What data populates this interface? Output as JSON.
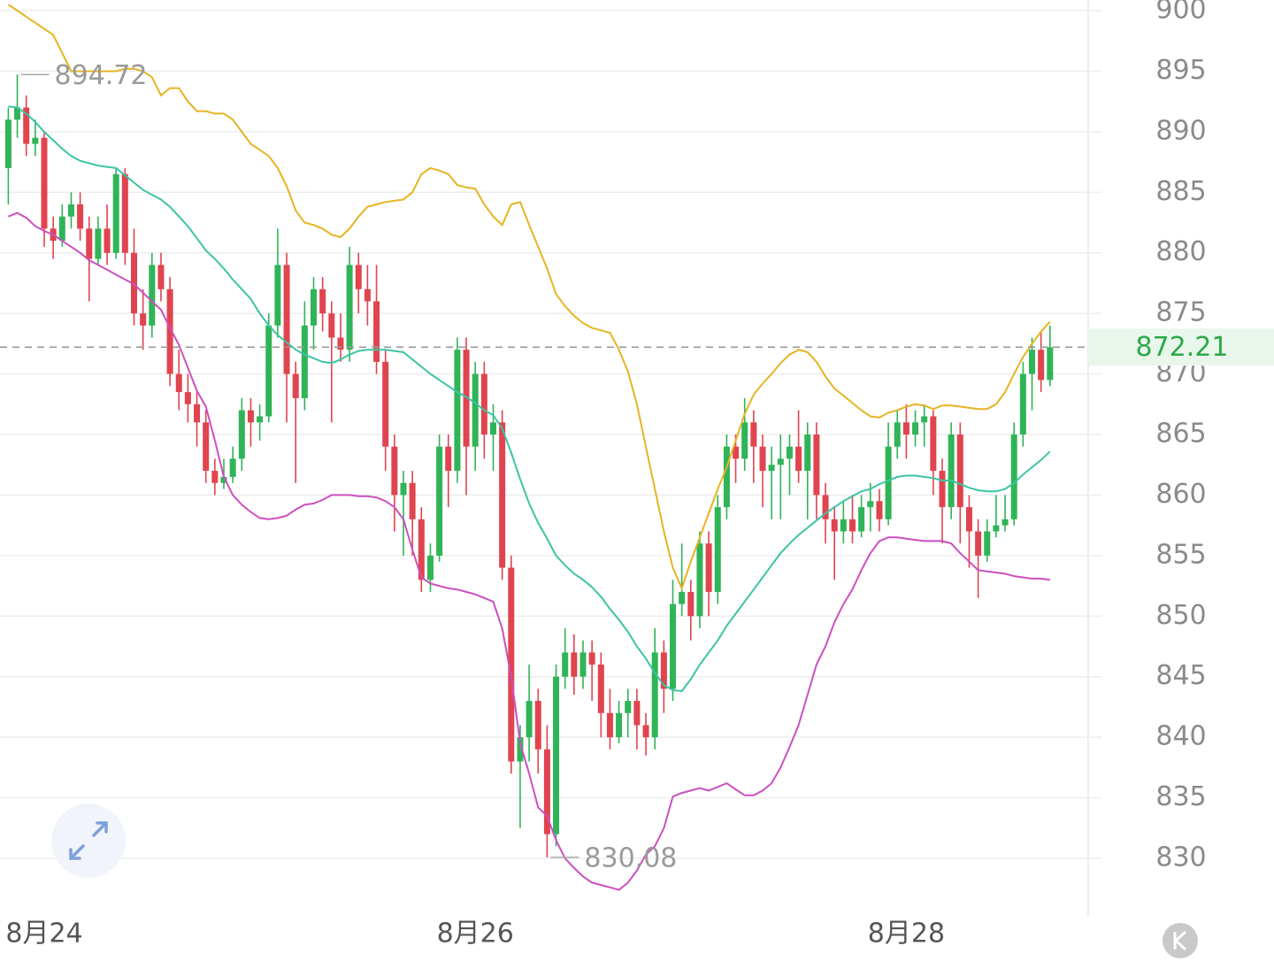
{
  "chart_data": {
    "type": "candlestick",
    "categories": [
      null,
      null,
      null,
      null,
      "8月24",
      null,
      null,
      null,
      null,
      null,
      null,
      null,
      null,
      null,
      null,
      null,
      null,
      null,
      null,
      null,
      null,
      null,
      null,
      null,
      null,
      null,
      null,
      null,
      null,
      null,
      null,
      null,
      null,
      null,
      null,
      null,
      null,
      null,
      null,
      null,
      null,
      null,
      null,
      null,
      null,
      null,
      null,
      null,
      null,
      null,
      null,
      null,
      "8月26",
      null,
      null,
      null,
      null,
      null,
      null,
      null,
      null,
      null,
      null,
      null,
      null,
      null,
      null,
      null,
      null,
      null,
      null,
      null,
      null,
      null,
      null,
      null,
      null,
      null,
      null,
      null,
      null,
      null,
      null,
      null,
      null,
      null,
      null,
      null,
      null,
      null,
      null,
      null,
      null,
      null,
      null,
      null,
      null,
      null,
      null,
      null,
      "8月28",
      null,
      null,
      null,
      null,
      null,
      null,
      null,
      null,
      null,
      null,
      null,
      null,
      null,
      null,
      null,
      null
    ],
    "ohlc": [
      [
        887,
        892,
        884,
        891
      ],
      [
        891,
        894.72,
        889.5,
        892
      ],
      [
        892,
        893,
        888,
        889
      ],
      [
        889,
        891,
        888,
        889.5
      ],
      [
        889.5,
        890,
        880.5,
        882
      ],
      [
        882,
        883,
        879.5,
        881
      ],
      [
        881,
        884,
        880.5,
        883
      ],
      [
        883,
        885,
        882,
        884
      ],
      [
        884,
        885,
        881,
        882
      ],
      [
        882,
        883,
        876,
        879.5
      ],
      [
        879.5,
        883,
        879,
        882
      ],
      [
        882,
        884,
        879,
        880
      ],
      [
        880,
        887,
        879.5,
        886.5
      ],
      [
        886.5,
        887,
        879,
        880
      ],
      [
        880,
        882,
        874,
        875
      ],
      [
        875,
        877,
        872,
        874
      ],
      [
        874,
        880,
        873,
        879
      ],
      [
        879,
        880,
        876,
        877
      ],
      [
        877,
        878,
        869,
        870
      ],
      [
        870,
        872,
        867,
        868.5
      ],
      [
        868.5,
        870,
        866,
        867.5
      ],
      [
        867.5,
        868.5,
        864,
        866
      ],
      [
        866,
        867,
        861,
        862
      ],
      [
        862,
        863,
        860,
        861
      ],
      [
        861,
        863,
        860.5,
        861.5
      ],
      [
        861.5,
        864,
        861,
        863
      ],
      [
        863,
        868,
        862,
        867
      ],
      [
        867,
        868,
        864,
        866
      ],
      [
        866,
        867.5,
        864.5,
        866.5
      ],
      [
        866.5,
        875,
        866,
        874
      ],
      [
        874,
        882,
        873,
        879
      ],
      [
        879,
        880,
        866,
        870
      ],
      [
        870,
        871,
        861,
        868
      ],
      [
        868,
        876,
        867,
        874
      ],
      [
        874,
        878,
        872,
        877
      ],
      [
        877,
        878,
        873.5,
        875
      ],
      [
        875,
        876,
        866,
        873
      ],
      [
        873,
        875,
        871,
        872
      ],
      [
        872,
        880.5,
        871,
        879
      ],
      [
        879,
        880,
        875,
        877
      ],
      [
        877,
        879,
        874,
        876
      ],
      [
        876,
        879,
        870,
        871
      ],
      [
        871,
        872,
        862,
        864
      ],
      [
        864,
        865,
        857,
        860
      ],
      [
        860,
        862,
        855,
        861
      ],
      [
        861,
        862,
        855,
        858
      ],
      [
        858,
        859,
        852,
        853
      ],
      [
        853,
        856,
        852,
        855
      ],
      [
        855,
        865,
        854.5,
        864
      ],
      [
        864,
        865,
        859,
        862
      ],
      [
        862,
        873,
        861,
        872
      ],
      [
        872,
        873,
        860,
        864
      ],
      [
        864,
        871,
        862,
        870
      ],
      [
        870,
        871,
        863,
        865
      ],
      [
        865,
        867.5,
        862,
        866
      ],
      [
        866,
        867,
        853,
        854
      ],
      [
        854,
        855,
        837,
        838
      ],
      [
        838,
        841,
        832.5,
        840
      ],
      [
        840,
        846,
        838,
        843
      ],
      [
        843,
        844,
        837,
        839
      ],
      [
        839,
        841,
        830.08,
        832
      ],
      [
        832,
        846,
        831,
        845
      ],
      [
        845,
        849,
        844,
        847
      ],
      [
        847,
        848.5,
        843.5,
        845
      ],
      [
        845,
        848,
        844,
        847
      ],
      [
        847,
        848,
        843,
        846
      ],
      [
        846,
        847,
        840,
        842
      ],
      [
        842,
        844,
        839,
        840
      ],
      [
        840,
        843,
        839.5,
        842
      ],
      [
        842,
        844,
        840,
        843
      ],
      [
        843,
        844,
        839,
        841
      ],
      [
        841,
        842,
        838.5,
        840
      ],
      [
        840,
        849,
        839,
        847
      ],
      [
        847,
        848,
        842,
        844
      ],
      [
        844,
        853,
        843,
        851
      ],
      [
        851,
        856,
        850,
        852
      ],
      [
        852,
        853,
        848,
        850
      ],
      [
        850,
        857,
        849,
        856
      ],
      [
        856,
        857,
        850,
        852
      ],
      [
        852,
        860,
        851,
        859
      ],
      [
        859,
        865,
        858,
        864
      ],
      [
        864,
        865,
        861,
        863
      ],
      [
        863,
        868,
        862,
        866
      ],
      [
        866,
        867,
        861,
        864
      ],
      [
        864,
        865,
        859,
        862
      ],
      [
        862,
        864,
        858,
        862.5
      ],
      [
        862.5,
        865,
        858,
        863
      ],
      [
        863,
        865,
        860,
        864
      ],
      [
        864,
        867,
        861,
        862
      ],
      [
        862,
        866,
        858,
        865
      ],
      [
        865,
        866,
        858,
        860
      ],
      [
        860,
        861,
        856,
        858
      ],
      [
        858,
        859,
        853,
        857
      ],
      [
        857,
        859.5,
        856,
        858
      ],
      [
        858,
        860,
        856,
        857
      ],
      [
        857,
        860,
        856.5,
        859
      ],
      [
        859,
        861,
        857,
        859.5
      ],
      [
        859.5,
        860.5,
        857,
        858
      ],
      [
        858,
        866,
        857.5,
        864
      ],
      [
        864,
        867,
        863,
        866
      ],
      [
        866,
        867.5,
        863,
        865
      ],
      [
        865,
        867,
        864,
        866
      ],
      [
        866,
        867.5,
        864,
        866.5
      ],
      [
        866.5,
        867,
        860,
        862
      ],
      [
        862,
        863,
        856,
        859
      ],
      [
        859,
        866,
        858,
        865
      ],
      [
        865,
        866,
        856,
        859
      ],
      [
        859,
        860,
        854,
        857
      ],
      [
        857,
        858,
        851.5,
        855
      ],
      [
        855,
        858,
        854.5,
        857
      ],
      [
        857,
        860,
        856.5,
        857.5
      ],
      [
        857.5,
        860,
        857,
        858
      ],
      [
        858,
        866,
        857.5,
        865
      ],
      [
        865,
        871,
        864,
        870
      ],
      [
        870,
        873,
        867,
        872
      ],
      [
        872,
        873.5,
        868.5,
        869.5
      ],
      [
        869.5,
        874,
        869,
        872.21
      ]
    ],
    "up_color": "#2fb457",
    "down_color": "#e0444e",
    "series": [
      {
        "color": "#e6b422",
        "values": [
          900.5,
          900,
          899.5,
          899,
          898.5,
          898,
          896.5,
          895,
          895,
          895,
          895,
          895,
          895,
          895.2,
          895.2,
          895,
          894.5,
          893,
          893.6,
          893.6,
          892.5,
          891.7,
          891.7,
          891.5,
          891.5,
          891,
          890,
          889,
          888.5,
          888,
          887,
          885.5,
          883.5,
          882.5,
          882.3,
          882,
          881.5,
          881.3,
          882,
          883,
          883.8,
          884,
          884.2,
          884.3,
          884.4,
          885,
          886.5,
          887,
          886.8,
          886.5,
          885.6,
          885.4,
          885.3,
          884,
          883,
          882.3,
          884,
          884.2,
          882.3,
          880.5,
          878.7,
          876.6,
          875.6,
          874.8,
          874.2,
          873.8,
          873.6,
          873.4,
          872,
          870.2,
          867.5,
          864,
          860.5,
          857,
          854,
          852.3,
          854.5,
          856.5,
          858.5,
          860.5,
          862.3,
          864.5,
          866.7,
          868.3,
          869.2,
          870,
          870.9,
          871.6,
          872,
          871.8,
          871,
          869.8,
          868.8,
          868.2,
          867.6,
          867,
          866.5,
          866.4,
          866.8,
          867,
          867.3,
          867.5,
          867.4,
          867.1,
          867.4,
          867.4,
          867.3,
          867.2,
          867.1,
          867.1,
          867.5,
          868.5,
          870,
          871.4,
          872.5,
          873.5,
          874.3
        ]
      },
      {
        "color": "#3cc4a4",
        "values": [
          892.1,
          892,
          891.5,
          890.8,
          890,
          889.3,
          888.6,
          888,
          887.6,
          887.4,
          887.2,
          887.1,
          887,
          886.4,
          885.8,
          885.2,
          884.8,
          884.4,
          883.8,
          883,
          882.2,
          881.2,
          880.2,
          879.5,
          878.7,
          877.8,
          877,
          876.2,
          875,
          874,
          873.2,
          872.6,
          872,
          871.6,
          871.3,
          871,
          870.9,
          871.2,
          871.6,
          871.9,
          872,
          872,
          872,
          871.9,
          871.8,
          871.2,
          870.6,
          870,
          869.5,
          869,
          868.5,
          868.1,
          867.6,
          867,
          866.6,
          865.5,
          863.5,
          861.3,
          859.3,
          857.7,
          856.4,
          855,
          854.2,
          853.5,
          853,
          852.4,
          851.6,
          850.6,
          849.7,
          848.7,
          847.5,
          846.5,
          845.3,
          844.3,
          843.9,
          843.8,
          844.8,
          846,
          847,
          848,
          849.2,
          850.2,
          851.2,
          852.2,
          853.2,
          854.2,
          855.2,
          856,
          856.7,
          857.3,
          857.9,
          858.5,
          859,
          859.5,
          859.9,
          860.3,
          860.5,
          860.9,
          861.2,
          861.5,
          861.6,
          861.6,
          861.5,
          861.4,
          861.2,
          861.2,
          860.9,
          860.6,
          860.4,
          860.3,
          860.3,
          860.5,
          861,
          861.7,
          862.3,
          862.9,
          863.6
        ]
      },
      {
        "color": "#cc4fc0",
        "values": [
          883,
          883.3,
          882.9,
          882.2,
          881.8,
          881.5,
          881,
          880.5,
          880,
          879.4,
          879,
          878.6,
          878.2,
          877.8,
          877.4,
          876.7,
          876,
          875.3,
          873.8,
          872.4,
          870.5,
          868.6,
          867.3,
          864.5,
          861.5,
          860,
          859.2,
          858.6,
          858.1,
          858,
          858.1,
          858.3,
          858.8,
          859.2,
          859.3,
          859.6,
          860,
          860,
          860,
          859.9,
          859.9,
          859.8,
          859.5,
          859,
          858,
          855.5,
          853.2,
          852.7,
          852.5,
          852.3,
          852.2,
          852,
          851.8,
          851.5,
          851.2,
          849,
          845,
          839.5,
          837,
          834.2,
          833.5,
          831.5,
          830,
          829.2,
          828.5,
          828,
          827.8,
          827.6,
          827.4,
          828,
          829,
          830.3,
          831,
          832.5,
          835.1,
          835.4,
          835.6,
          835.8,
          835.6,
          835.9,
          836.2,
          835.7,
          835.2,
          835.2,
          835.6,
          836.2,
          837.5,
          839.2,
          841,
          843.5,
          846,
          847.5,
          849.5,
          851,
          852.2,
          853.8,
          855.2,
          856.2,
          856.5,
          856.5,
          856.4,
          856.3,
          856.2,
          856.2,
          856.2,
          856,
          855.2,
          854.5,
          853.8,
          853.7,
          853.6,
          853.5,
          853.3,
          853.2,
          853.1,
          853.1,
          853
        ]
      }
    ],
    "ylim": [
      825.25,
      900.88
    ],
    "yticks": [
      830,
      835,
      840,
      845,
      850,
      855,
      860,
      865,
      870,
      875,
      880,
      885,
      890,
      895,
      900
    ],
    "grid": true,
    "high_marker": 894.72,
    "low_marker": 830.08,
    "last_price": 872.21,
    "last_price_color": "#2ea84a"
  }
}
